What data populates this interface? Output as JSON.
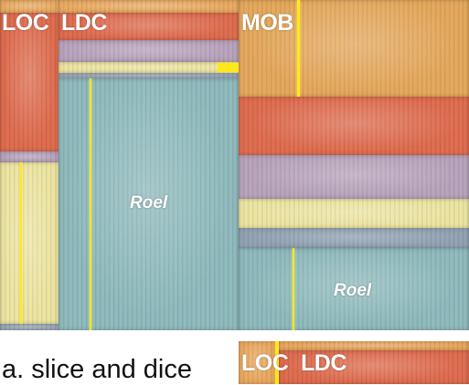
{
  "labels": {
    "loc": "LOC",
    "ldc": "LDC",
    "mob": "MOB",
    "roel": "Roel"
  },
  "caption": "a. slice and dice",
  "colors": {
    "orange": "#e4a75a",
    "red": "#de6a4c",
    "purple": "#b7a2bb",
    "yellow": "#ece4a0",
    "slate": "#8fa1b2",
    "teal": "#8db9bc",
    "bright_yellow": "#ffe81a"
  }
}
